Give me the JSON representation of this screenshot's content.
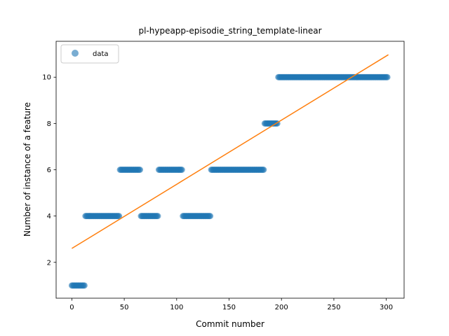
{
  "chart_data": {
    "type": "scatter",
    "title": "pl-hypeapp-episodie_string_template-linear",
    "xlabel": "Commit number",
    "ylabel": "Number of instance of a feature",
    "xlim": [
      -15,
      317
    ],
    "ylim": [
      0.45,
      11.55
    ],
    "xticks": [
      0,
      50,
      100,
      150,
      200,
      250,
      300
    ],
    "yticks": [
      2,
      4,
      6,
      8,
      10
    ],
    "legend": {
      "position": "top-left",
      "entries": [
        "data"
      ]
    },
    "colors": {
      "data": "#1f77b4",
      "fit": "#ff7f0e"
    },
    "series": [
      {
        "name": "data",
        "kind": "points",
        "segments": [
          {
            "x_start": 0,
            "x_end": 13,
            "y": 1
          },
          {
            "x_start": 13,
            "x_end": 46,
            "y": 4
          },
          {
            "x_start": 46,
            "x_end": 66,
            "y": 6
          },
          {
            "x_start": 66,
            "x_end": 83,
            "y": 4
          },
          {
            "x_start": 83,
            "x_end": 106,
            "y": 6
          },
          {
            "x_start": 106,
            "x_end": 133,
            "y": 4
          },
          {
            "x_start": 133,
            "x_end": 184,
            "y": 6
          },
          {
            "x_start": 184,
            "x_end": 197,
            "y": 8
          },
          {
            "x_start": 197,
            "x_end": 302,
            "y": 10
          }
        ]
      },
      {
        "kind": "line",
        "x": [
          0,
          302
        ],
        "y": [
          2.6,
          10.97
        ]
      }
    ]
  }
}
